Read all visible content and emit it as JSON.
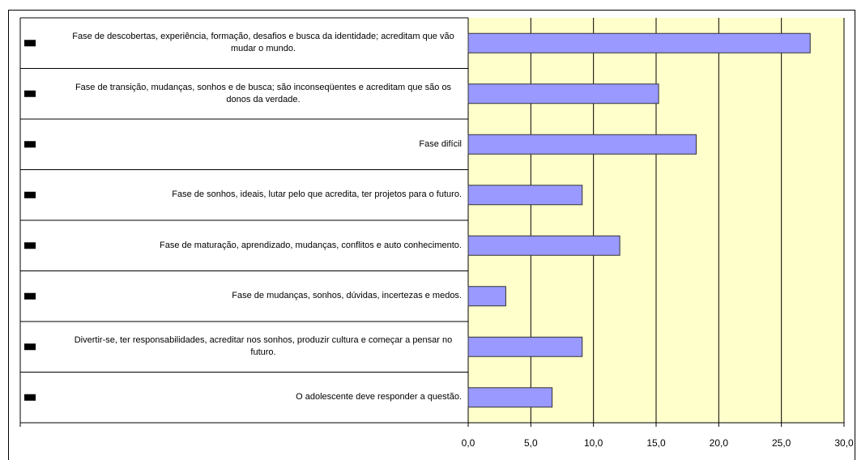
{
  "chart_data": {
    "type": "barh",
    "categories": [
      "Fase de descobertas, experiência, formação, desafios e busca da identidade; acreditam que vão mudar o mundo.",
      "Fase de transição, mudanças, sonhos e de busca; são inconseqüentes e acreditam que são os donos da verdade.",
      "Fase difícil",
      "Fase de sonhos, ideais,  lutar pelo que acredita, ter projetos para o futuro.",
      "Fase de maturação, aprendizado, mudanças, conflitos e auto conhecimento.",
      "Fase de mudanças, sonhos, dúvidas, incertezas e medos.",
      "Divertir-se, ter responsabilidades, acreditar nos sonhos, produzir cultura e começar a pensar no futuro.",
      "O adolescente deve responder a questão."
    ],
    "values": [
      27.3,
      15.2,
      18.2,
      9.1,
      12.1,
      3.0,
      9.1,
      6.7
    ],
    "color": "#9999ff",
    "xlim": [
      0,
      30
    ],
    "xticks": [
      {
        "value": 0,
        "label": "0,0"
      },
      {
        "value": 5,
        "label": "5,0"
      },
      {
        "value": 10,
        "label": "10,0"
      },
      {
        "value": 15,
        "label": "15,0"
      },
      {
        "value": 20,
        "label": "20,0"
      },
      {
        "value": 25,
        "label": "25,0"
      },
      {
        "value": 30,
        "label": "30,0"
      }
    ],
    "grid": true
  }
}
